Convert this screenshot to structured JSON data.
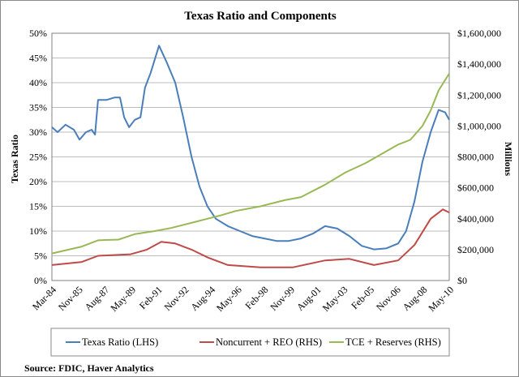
{
  "chart_data": {
    "type": "line",
    "title": "Texas Ratio and Components",
    "ylabel_left": "Texas Ratio",
    "ylabel_right": "Millions",
    "source": "Source:  FDIC, Haver Analytics",
    "x_unit": "quarters since Mar-84",
    "xlim": [
      0,
      105
    ],
    "x_tick_labels": [
      "Mar-84",
      "Nov-85",
      "Aug-87",
      "May-89",
      "Feb-91",
      "Nov-92",
      "Aug-94",
      "May-96",
      "Feb-98",
      "Nov-99",
      "Aug-01",
      "May-03",
      "Feb-05",
      "Nov-06",
      "Aug-08",
      "May-10"
    ],
    "ylim_left": [
      0,
      50
    ],
    "y_ticks_left": [
      "0%",
      "5%",
      "10%",
      "15%",
      "20%",
      "25%",
      "30%",
      "35%",
      "40%",
      "45%",
      "50%"
    ],
    "ylim_right": [
      0,
      1600000
    ],
    "y_ticks_right": [
      "$0",
      "$200,000",
      "$400,000",
      "$600,000",
      "$800,000",
      "$1,000,000",
      "$1,200,000",
      "$1,400,000",
      "$1,600,000"
    ],
    "grid": true,
    "legend_position": "bottom",
    "series": [
      {
        "name": "Texas Ratio (LHS)",
        "axis": "left",
        "color": "#4a7ebb",
        "x": [
          0,
          1.5,
          3.6,
          5.8,
          7.3,
          9,
          10.5,
          11.4,
          12.2,
          14.4,
          16.5,
          18,
          19.1,
          20.4,
          21.9,
          23.4,
          24.6,
          26.1,
          28.3,
          30.4,
          32.6,
          34.7,
          36.9,
          39,
          41.1,
          43.3,
          46.5,
          49.7,
          52.9,
          56.1,
          59.4,
          62.6,
          65.8,
          69,
          72.2,
          75.4,
          78.6,
          81.9,
          85.1,
          88.3,
          91.5,
          93.6,
          95.8,
          97.9,
          100.1,
          102.2,
          103.9,
          105
        ],
        "y": [
          31,
          30,
          31.5,
          30.5,
          28.5,
          30,
          30.5,
          29.5,
          36.5,
          36.5,
          37,
          37,
          33,
          31,
          32.5,
          33,
          39,
          42,
          47.5,
          44,
          40,
          33,
          25,
          19,
          15,
          12.5,
          11,
          10,
          9,
          8.5,
          8,
          8,
          8.5,
          9.5,
          11,
          10.5,
          9,
          7,
          6.3,
          6.5,
          7.5,
          10,
          16,
          24,
          30,
          34.5,
          34,
          32.5
        ]
      },
      {
        "name": "Noncurrent + REO (RHS)",
        "axis": "right",
        "color": "#be4b48",
        "x": [
          0,
          7.9,
          12.2,
          20.8,
          25.1,
          28.9,
          32.6,
          36.9,
          41.1,
          46.5,
          55.1,
          63.6,
          72.2,
          78.6,
          85.1,
          91.5,
          95.8,
          100.1,
          103.3,
          105
        ],
        "y": [
          100000,
          120000,
          160000,
          170000,
          200000,
          250000,
          240000,
          200000,
          150000,
          100000,
          85000,
          85000,
          130000,
          140000,
          100000,
          130000,
          230000,
          400000,
          460000,
          440000
        ]
      },
      {
        "name": "TCE + Reserves (RHS)",
        "axis": "right",
        "color": "#98b954",
        "x": [
          0,
          7.9,
          12.2,
          17.6,
          21.9,
          27.2,
          31.5,
          37.9,
          44.4,
          48.6,
          55.1,
          61.5,
          65.8,
          72.2,
          77.6,
          82.9,
          87.2,
          91.5,
          94.7,
          97.9,
          100.1,
          102.2,
          105
        ],
        "y": [
          175000,
          220000,
          260000,
          265000,
          300000,
          320000,
          340000,
          380000,
          420000,
          450000,
          480000,
          520000,
          540000,
          620000,
          700000,
          760000,
          820000,
          880000,
          910000,
          1000000,
          1100000,
          1230000,
          1340000
        ]
      }
    ]
  }
}
